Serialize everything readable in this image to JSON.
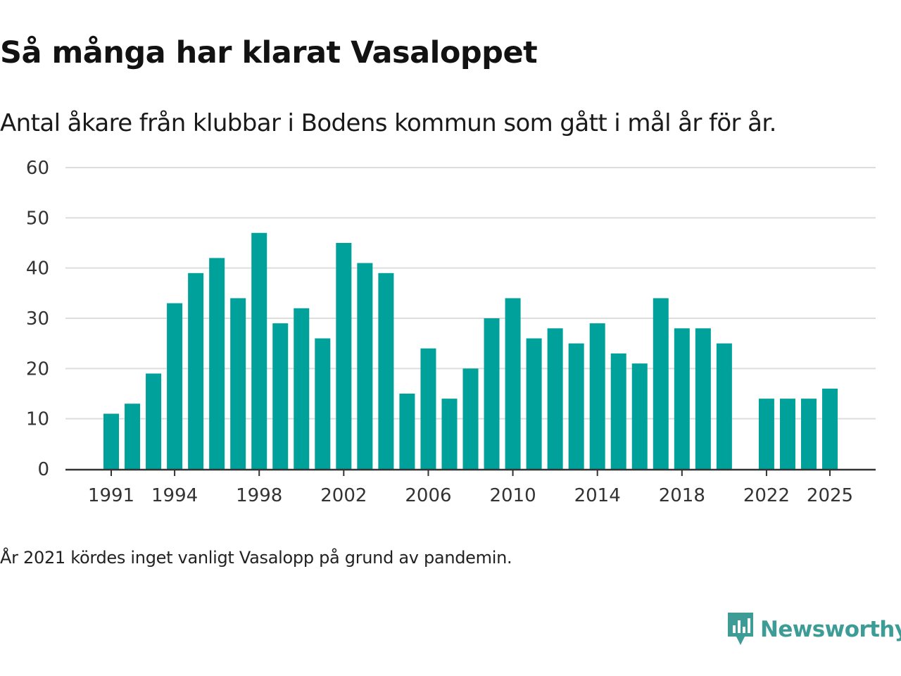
{
  "title": "Så många har klarat Vasaloppet",
  "subtitle": "Antal åkare från klubbar i Bodens kommun som gått i mål år för år.",
  "footnote": "År 2021 kördes inget vanligt Vasalopp på grund av pandemin.",
  "brand": {
    "name": "Newsworthy",
    "icon": "newsworthy-logo-icon",
    "color": "#3d9c96"
  },
  "colors": {
    "bar": "#00a19a",
    "grid": "#dddddd",
    "axis": "#333333",
    "tick_text": "#333333"
  },
  "chart_data": {
    "type": "bar",
    "title": "Så många har klarat Vasaloppet",
    "xlabel": "",
    "ylabel": "",
    "ylim": [
      0,
      60
    ],
    "yticks": [
      0,
      10,
      20,
      30,
      40,
      50,
      60
    ],
    "xtick_labels": [
      "1991",
      "1994",
      "1998",
      "2002",
      "2006",
      "2010",
      "2014",
      "2018",
      "2022",
      "2025"
    ],
    "x_range": [
      1991,
      2025
    ],
    "categories": [
      1991,
      1992,
      1993,
      1994,
      1995,
      1996,
      1997,
      1998,
      1999,
      2000,
      2001,
      2002,
      2003,
      2004,
      2005,
      2006,
      2007,
      2008,
      2009,
      2010,
      2011,
      2012,
      2013,
      2014,
      2015,
      2016,
      2017,
      2018,
      2019,
      2020,
      2022,
      2023,
      2024,
      2025
    ],
    "values": [
      11,
      13,
      19,
      33,
      39,
      42,
      34,
      47,
      29,
      32,
      26,
      45,
      41,
      39,
      15,
      24,
      14,
      20,
      30,
      34,
      26,
      28,
      25,
      29,
      23,
      21,
      34,
      28,
      28,
      25,
      14,
      14,
      14,
      16
    ],
    "grid": true,
    "legend": "none"
  }
}
